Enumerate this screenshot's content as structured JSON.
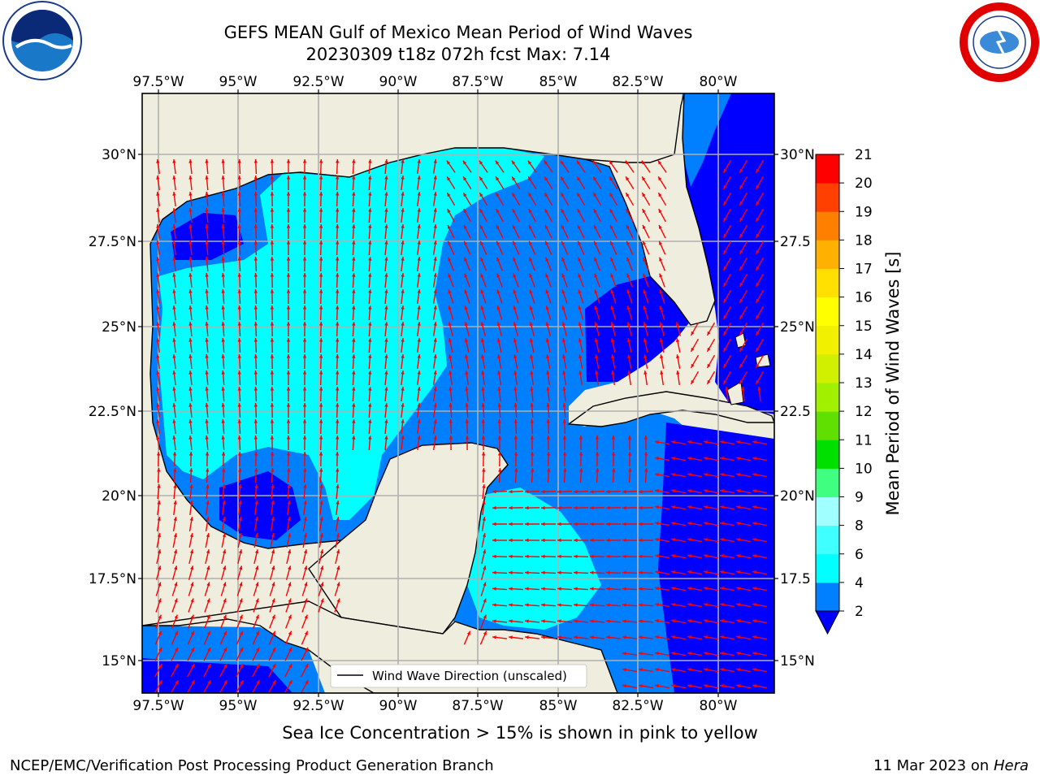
{
  "header": {
    "title_line1": "GEFS MEAN Gulf of Mexico Mean Period of Wind Waves",
    "title_line2": "20230309 t18z 072h fcst   Max: 7.14"
  },
  "map": {
    "lon_ticks": [
      "97.5°W",
      "95°W",
      "92.5°W",
      "90°W",
      "87.5°W",
      "85°W",
      "82.5°W",
      "80°W"
    ],
    "lat_ticks_left": [
      "30°N",
      "27.5°N",
      "25°N",
      "22.5°N",
      "20°N",
      "17.5°N",
      "15°N"
    ],
    "lat_ticks_right": [
      "30°N",
      "27.5",
      "25°N",
      "22.5",
      "20°N",
      "17.5",
      "15°N"
    ],
    "legend_label": "Wind Wave Direction (unscaled)",
    "colors": {
      "land": "#efedde",
      "grid": "#b0b0b0",
      "arrow": "#ff0000"
    }
  },
  "colorbar": {
    "label": "Mean Period of Wind Waves [s]",
    "ticks": [
      "2",
      "4",
      "6",
      "8",
      "9",
      "10",
      "11",
      "12",
      "13",
      "14",
      "15",
      "16",
      "17",
      "18",
      "19",
      "20",
      "21"
    ],
    "colors": [
      "#0000ff",
      "#0080ff",
      "#00ffff",
      "#40ffff",
      "#a0ffff",
      "#40ff80",
      "#00e000",
      "#60e000",
      "#a0f000",
      "#d0f000",
      "#f0f000",
      "#ffff00",
      "#ffe000",
      "#ffb000",
      "#ff8000",
      "#ff4000",
      "#ff0000"
    ]
  },
  "footer": {
    "note": "Sea Ice Concentration > 15% is shown in pink to yellow",
    "credit": "NCEP/EMC/Verification Post Processing Product Generation Branch",
    "date": "11 Mar 2023 on",
    "host": "Hera"
  },
  "logos": {
    "left_icon": "noaa-logo-icon",
    "right_icon": "nws-logo-icon"
  }
}
